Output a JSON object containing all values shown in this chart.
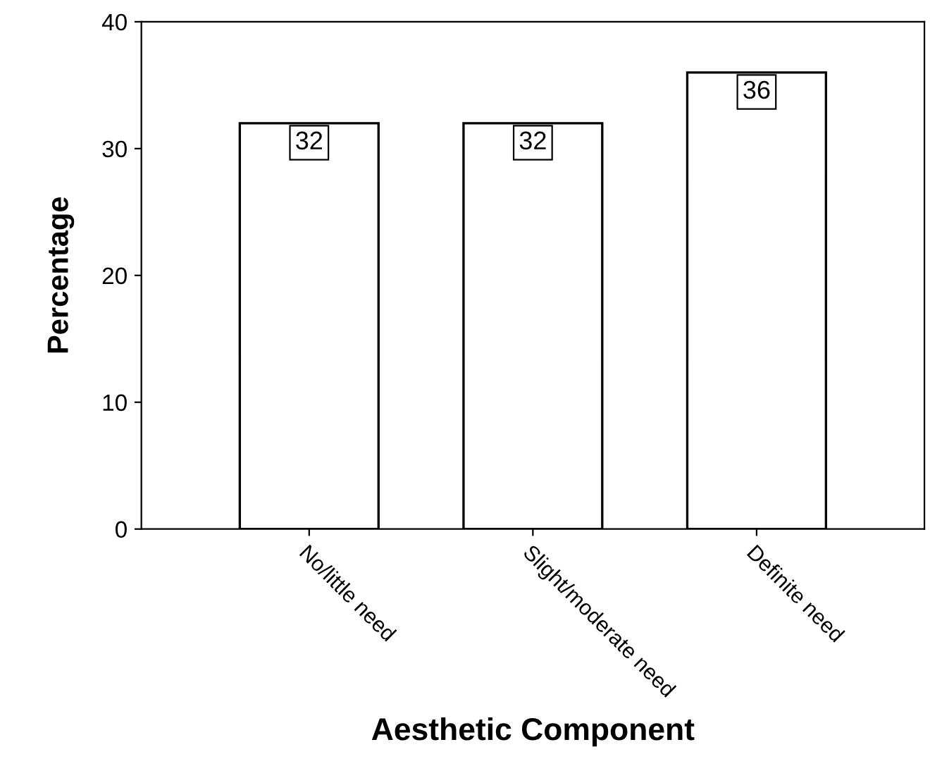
{
  "chart_data": {
    "type": "bar",
    "xlabel": "Aesthetic Component",
    "ylabel": "Percentage",
    "categories": [
      "No/little need",
      "Slight/moderate need",
      "Definite need"
    ],
    "values": [
      32,
      32,
      36
    ],
    "color": "#ffffff",
    "ylim": [
      0,
      40
    ],
    "yticks": [
      0,
      10,
      20,
      30,
      40
    ],
    "grid": false,
    "data_labels": true
  }
}
